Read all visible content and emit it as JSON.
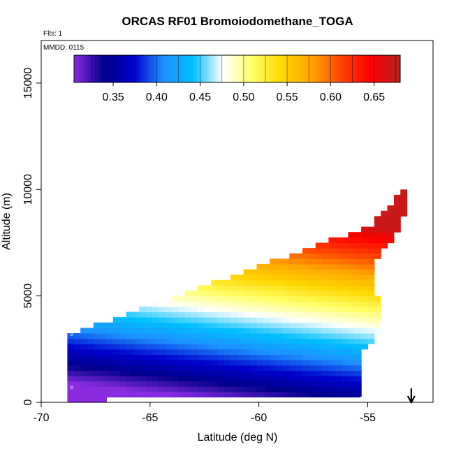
{
  "chart_data": {
    "type": "heatmap",
    "title": "ORCAS RF01 Bromoiodomethane_TOGA",
    "annotations": {
      "flights": "Flts: 1",
      "date": "MMDD: 0115"
    },
    "xlabel": "Latitude (deg N)",
    "ylabel": "Altitude (m)",
    "xlim": [
      -70,
      -52
    ],
    "ylim": [
      0,
      17000
    ],
    "xticks": [
      -70,
      -65,
      -60,
      -55
    ],
    "yticks": [
      0,
      5000,
      10000,
      15000
    ],
    "colorbar": {
      "range": [
        0.305,
        0.68
      ],
      "ticks": [
        0.35,
        0.4,
        0.45,
        0.5,
        0.55,
        0.6,
        0.65
      ],
      "tick_labels": [
        "0.35",
        "0.40",
        "0.45",
        "0.50",
        "0.55",
        "0.60",
        "0.65"
      ],
      "colors": [
        "#8a2be2",
        "#00008b",
        "#0000cd",
        "#1e90ff",
        "#00bfff",
        "#ffffff",
        "#ffff66",
        "#ffd700",
        "#ffa500",
        "#ff4500",
        "#ff0000",
        "#b22222"
      ]
    },
    "field": {
      "lat_range": [
        -68.8,
        -53.2
      ],
      "alt_range": [
        0,
        10500
      ],
      "lower_boundary": [
        [
          -68.8,
          100
        ],
        [
          -62,
          200
        ],
        [
          -55.3,
          200
        ]
      ],
      "upper_boundary": [
        [
          -68.8,
          3200
        ],
        [
          -55,
          8300
        ],
        [
          -53.2,
          10400
        ]
      ],
      "east_boundary": [
        [
          -55.3,
          200
        ],
        [
          -55.3,
          2200
        ],
        [
          -54.3,
          3500
        ],
        [
          -54.8,
          6500
        ],
        [
          -53.4,
          8200
        ],
        [
          -53.2,
          10400
        ]
      ],
      "gradient_axis": {
        "direction": "increases toward upper-right",
        "min_value": 0.305,
        "max_value": 0.67
      }
    },
    "markers": [
      {
        "lat": -68.6,
        "alt": 3200
      },
      {
        "lat": -68.6,
        "alt": 700
      },
      {
        "lat": -55.3,
        "alt": 200
      },
      {
        "lat": -53.3,
        "alt": 10300
      }
    ],
    "arrow": {
      "lat": -53,
      "direction": "down"
    },
    "grid": false,
    "legend_position": "top"
  }
}
